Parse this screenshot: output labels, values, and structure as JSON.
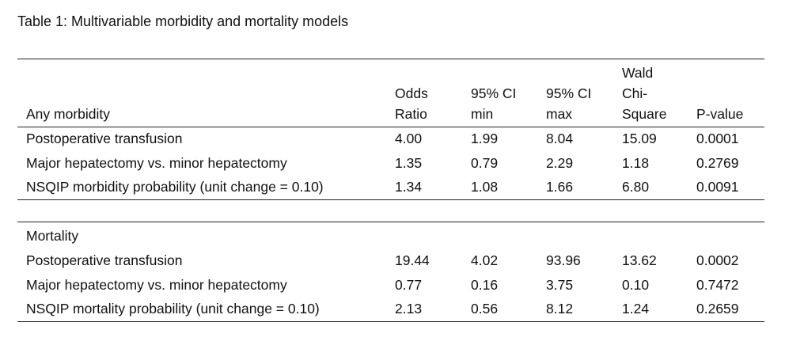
{
  "caption": "Table 1: Multivariable morbidity and mortality models",
  "columns": {
    "odds_1": "Odds",
    "odds_2": "Ratio",
    "cimin_1": "95% CI",
    "cimin_2": "min",
    "cimax_1": "95% CI",
    "cimax_2": "max",
    "wald_1": "Wald",
    "wald_2": "Chi-",
    "wald_3": "Square",
    "pvalue": "P-value"
  },
  "morbidity": {
    "section": "Any morbidity",
    "rows": [
      {
        "label": "Postoperative transfusion",
        "odds": "4.00",
        "ci_min": "1.99",
        "ci_max": "8.04",
        "wald": "15.09",
        "p": "0.0001"
      },
      {
        "label": "Major hepatectomy vs. minor hepatectomy",
        "odds": "1.35",
        "ci_min": "0.79",
        "ci_max": "2.29",
        "wald": "1.18",
        "p": "0.2769"
      },
      {
        "label": "NSQIP morbidity probability (unit change = 0.10)",
        "odds": "1.34",
        "ci_min": "1.08",
        "ci_max": "1.66",
        "wald": "6.80",
        "p": "0.0091"
      }
    ]
  },
  "mortality": {
    "section": "Mortality",
    "rows": [
      {
        "label": "Postoperative transfusion",
        "odds": "19.44",
        "ci_min": "4.02",
        "ci_max": "93.96",
        "wald": "13.62",
        "p": "0.0002"
      },
      {
        "label": "Major hepatectomy vs. minor hepatectomy",
        "odds": "0.77",
        "ci_min": "0.16",
        "ci_max": "3.75",
        "wald": "0.10",
        "p": "0.7472"
      },
      {
        "label": "NSQIP mortality probability (unit change = 0.10)",
        "odds": "2.13",
        "ci_min": "0.56",
        "ci_max": "8.12",
        "wald": "1.24",
        "p": "0.2659"
      }
    ]
  }
}
